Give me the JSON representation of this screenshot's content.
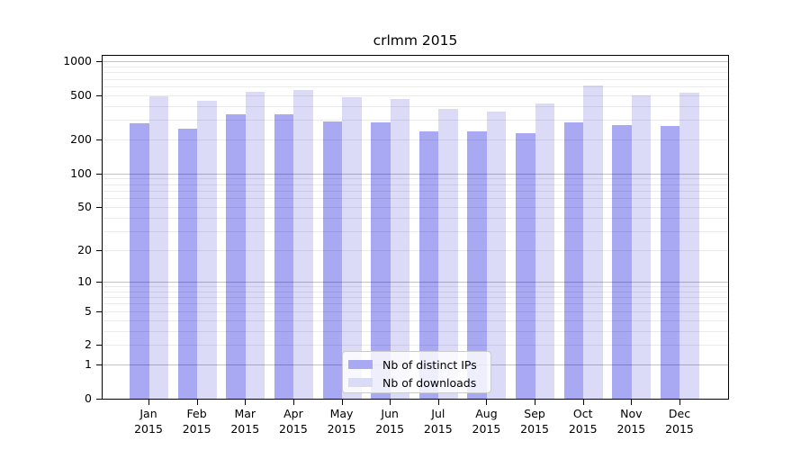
{
  "chart_data": {
    "type": "bar",
    "title": "crlmm 2015",
    "scale": "log1p",
    "grid": "horizontal, log minor + major decades",
    "legend_position": "lower center",
    "year": "2015",
    "categories": [
      "Jan",
      "Feb",
      "Mar",
      "Apr",
      "May",
      "Jun",
      "Jul",
      "Aug",
      "Sep",
      "Oct",
      "Nov",
      "Dec"
    ],
    "yticks": [
      0,
      1,
      2,
      5,
      10,
      20,
      50,
      100,
      200,
      500,
      1000
    ],
    "ylim": [
      0,
      1000
    ],
    "series": [
      {
        "name": "Nb of distinct IPs",
        "color": "#a8a8f3",
        "values": [
          282,
          253,
          336,
          336,
          291,
          288,
          238,
          238,
          230,
          285,
          273,
          266
        ]
      },
      {
        "name": "Nb of downloads",
        "color": "#dbdbf8",
        "values": [
          486,
          448,
          539,
          556,
          477,
          465,
          380,
          355,
          422,
          610,
          498,
          529
        ]
      }
    ]
  }
}
